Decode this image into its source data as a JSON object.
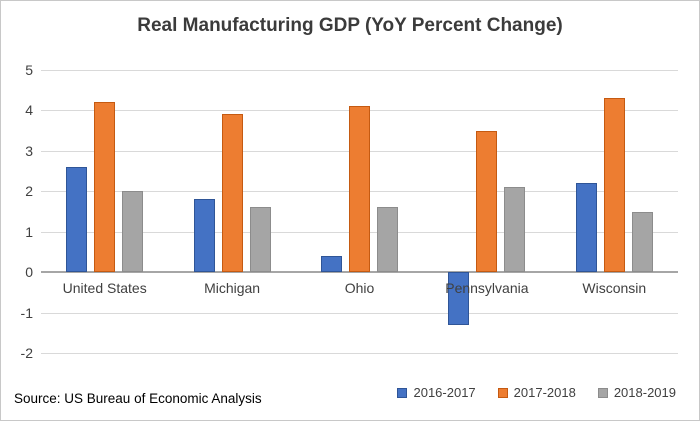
{
  "chart_data": {
    "type": "bar",
    "title": "Real Manufacturing GDP (YoY Percent Change)",
    "categories": [
      "United States",
      "Michigan",
      "Ohio",
      "Pennsylvania",
      "Wisconsin"
    ],
    "series": [
      {
        "name": "2016-2017",
        "color": "#4472C4",
        "border_color": "#2F5597",
        "values": [
          2.6,
          1.8,
          0.4,
          -1.3,
          2.2
        ]
      },
      {
        "name": "2017-2018",
        "color": "#ED7D31",
        "border_color": "#C55A11",
        "values": [
          4.2,
          3.9,
          4.1,
          3.5,
          4.3
        ]
      },
      {
        "name": "2018-2019",
        "color": "#A5A5A5",
        "border_color": "#8C8C8C",
        "values": [
          2.0,
          1.6,
          1.6,
          2.1,
          1.5
        ]
      }
    ],
    "xlabel": "",
    "ylabel": "",
    "ylim": [
      -2,
      5
    ],
    "ytick_step": 1,
    "grid": true,
    "legend_position": "bottom-right",
    "gridline_color": "#D9D9D9",
    "zero_line_color": "#A6A6A6"
  },
  "source_note": "Source: US Bureau of Economic Analysis"
}
